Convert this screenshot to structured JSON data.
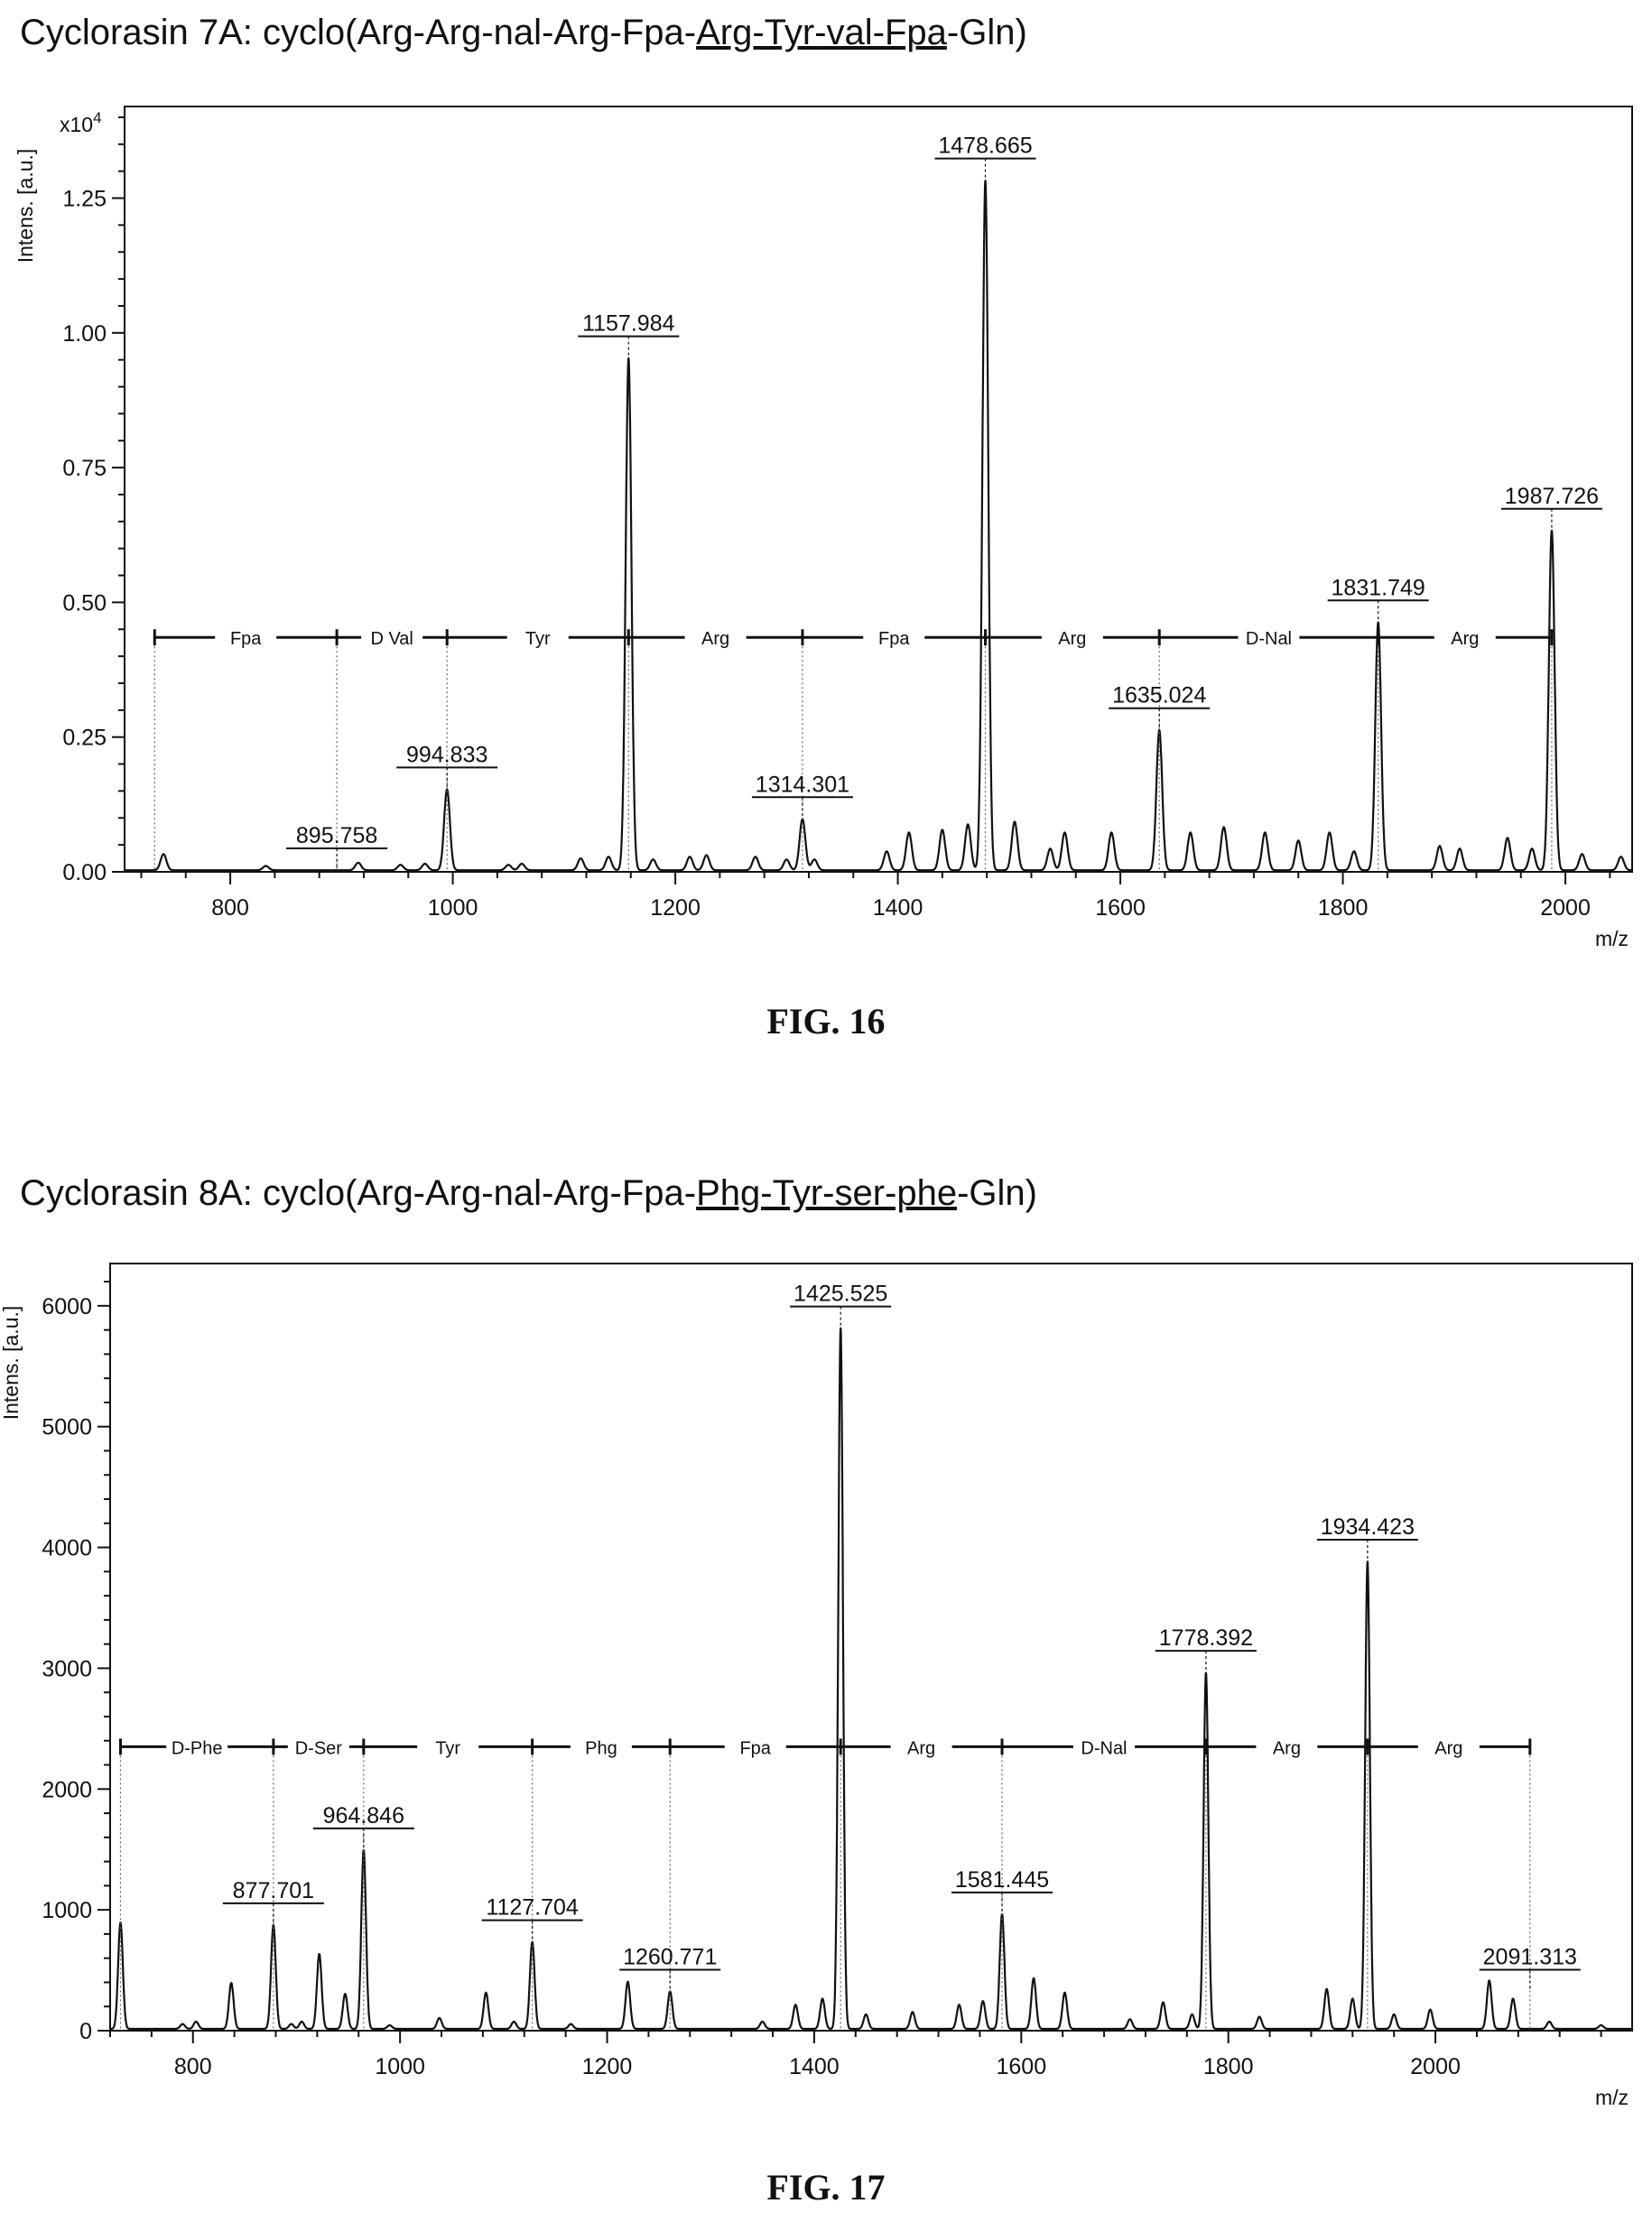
{
  "figures": [
    {
      "title_prefix": "Cyclorasin 7A: cyclo(Arg-Arg-nal-Arg-Fpa-",
      "title_underlined": "Arg-Tyr-val-Fpa",
      "title_suffix": "-Gln)",
      "caption": "FIG. 16",
      "chart_data": {
        "type": "line",
        "ylabel": "Intens. [a.u.]",
        "xlabel": "m/z",
        "y_multiplier_label": "x10",
        "y_multiplier_exp": "4",
        "xlim": [
          705,
          2060
        ],
        "ylim": [
          0,
          1.42
        ],
        "xticks": [
          800,
          1000,
          1200,
          1400,
          1600,
          1800,
          2000
        ],
        "yticks": [
          0.0,
          0.25,
          0.5,
          0.75,
          1.0,
          1.25
        ],
        "ytick_labels": [
          "0.00",
          "0.25",
          "0.50",
          "0.75",
          "1.00",
          "1.25"
        ],
        "baseline": 0.003,
        "peaks": [
          [
            740,
            0.03
          ],
          [
            832,
            0.008
          ],
          [
            915,
            0.014
          ],
          [
            953,
            0.01
          ],
          [
            975,
            0.012
          ],
          [
            994.8,
            0.15
          ],
          [
            1050,
            0.01
          ],
          [
            1062,
            0.012
          ],
          [
            1115,
            0.022
          ],
          [
            1140,
            0.025
          ],
          [
            1157.98,
            0.95
          ],
          [
            1180,
            0.02
          ],
          [
            1213,
            0.025
          ],
          [
            1228,
            0.028
          ],
          [
            1272,
            0.025
          ],
          [
            1300,
            0.02
          ],
          [
            1314.3,
            0.095
          ],
          [
            1325,
            0.02
          ],
          [
            1390,
            0.035
          ],
          [
            1410,
            0.07
          ],
          [
            1440,
            0.075
          ],
          [
            1463,
            0.085
          ],
          [
            1478.67,
            1.28
          ],
          [
            1505,
            0.09
          ],
          [
            1537,
            0.04
          ],
          [
            1550,
            0.07
          ],
          [
            1592,
            0.07
          ],
          [
            1635.02,
            0.26
          ],
          [
            1663,
            0.07
          ],
          [
            1693,
            0.08
          ],
          [
            1730,
            0.07
          ],
          [
            1760,
            0.055
          ],
          [
            1788,
            0.07
          ],
          [
            1810,
            0.035
          ],
          [
            1831.75,
            0.46
          ],
          [
            1887,
            0.045
          ],
          [
            1905,
            0.04
          ],
          [
            1948,
            0.06
          ],
          [
            1970,
            0.04
          ],
          [
            1987.73,
            0.63
          ],
          [
            2015,
            0.03
          ],
          [
            2050,
            0.025
          ]
        ],
        "peak_labels": [
          {
            "x": 895.758,
            "y": 0.0,
            "label": "895.758"
          },
          {
            "x": 994.833,
            "y": 0.15,
            "label": "994.833"
          },
          {
            "x": 1157.984,
            "y": 0.95,
            "label": "1157.984"
          },
          {
            "x": 1314.301,
            "y": 0.095,
            "label": "1314.301"
          },
          {
            "x": 1478.665,
            "y": 1.28,
            "label": "1478.665"
          },
          {
            "x": 1635.024,
            "y": 0.26,
            "label": "1635.024"
          },
          {
            "x": 1831.749,
            "y": 0.46,
            "label": "1831.749"
          },
          {
            "x": 1987.726,
            "y": 0.63,
            "label": "1987.726"
          }
        ],
        "sequence_y": 0.435,
        "sequence_marks": [
          732,
          895.758,
          994.833,
          1157.984,
          1314.301,
          1478.665,
          1635.024,
          1831.749,
          1987.726
        ],
        "residues": [
          "Fpa",
          "D Val",
          "Tyr",
          "Arg",
          "Fpa",
          "Arg",
          "D-Nal",
          "Arg"
        ]
      }
    },
    {
      "title_prefix": "Cyclorasin 8A: cyclo(Arg-Arg-nal-Arg-Fpa-",
      "title_underlined": "Phg-Tyr-ser-phe",
      "title_suffix": "-Gln)",
      "caption": "FIG. 17",
      "chart_data": {
        "type": "line",
        "ylabel": "Intens. [a.u.]",
        "xlabel": "m/z",
        "y_multiplier_label": "",
        "y_multiplier_exp": "",
        "xlim": [
          720,
          2190
        ],
        "ylim": [
          0,
          6350
        ],
        "xticks": [
          800,
          1000,
          1200,
          1400,
          1600,
          1800,
          2000
        ],
        "yticks": [
          0,
          1000,
          2000,
          3000,
          4000,
          5000,
          6000
        ],
        "ytick_labels": [
          "0",
          "1000",
          "2000",
          "3000",
          "4000",
          "5000",
          "6000"
        ],
        "baseline": 15,
        "peaks": [
          [
            730,
            880
          ],
          [
            790,
            40
          ],
          [
            803,
            60
          ],
          [
            837,
            380
          ],
          [
            877.7,
            860
          ],
          [
            895,
            40
          ],
          [
            905,
            60
          ],
          [
            922,
            620
          ],
          [
            947,
            290
          ],
          [
            964.85,
            1480
          ],
          [
            990,
            30
          ],
          [
            1038,
            90
          ],
          [
            1083,
            300
          ],
          [
            1110,
            60
          ],
          [
            1127.7,
            720
          ],
          [
            1165,
            40
          ],
          [
            1220,
            390
          ],
          [
            1260.77,
            310
          ],
          [
            1350,
            60
          ],
          [
            1382,
            200
          ],
          [
            1408,
            250
          ],
          [
            1425.53,
            5800
          ],
          [
            1450,
            120
          ],
          [
            1495,
            140
          ],
          [
            1540,
            200
          ],
          [
            1563,
            230
          ],
          [
            1581.45,
            950
          ],
          [
            1612,
            420
          ],
          [
            1642,
            300
          ],
          [
            1705,
            80
          ],
          [
            1737,
            220
          ],
          [
            1765,
            120
          ],
          [
            1778.39,
            2950
          ],
          [
            1830,
            100
          ],
          [
            1895,
            330
          ],
          [
            1920,
            250
          ],
          [
            1934.42,
            3870
          ],
          [
            1960,
            120
          ],
          [
            1995,
            160
          ],
          [
            2052,
            400
          ],
          [
            2075,
            250
          ],
          [
            2110,
            60
          ],
          [
            2160,
            30
          ]
        ],
        "peak_labels": [
          {
            "x": 877.701,
            "y": 860,
            "label": "877.701"
          },
          {
            "x": 964.846,
            "y": 1480,
            "label": "964.846"
          },
          {
            "x": 1127.704,
            "y": 720,
            "label": "1127.704"
          },
          {
            "x": 1260.771,
            "y": 310,
            "label": "1260.771"
          },
          {
            "x": 1425.525,
            "y": 5800,
            "label": "1425.525"
          },
          {
            "x": 1581.445,
            "y": 950,
            "label": "1581.445"
          },
          {
            "x": 1778.392,
            "y": 2950,
            "label": "1778.392"
          },
          {
            "x": 1934.423,
            "y": 3870,
            "label": "1934.423"
          },
          {
            "x": 2091.313,
            "y": 310,
            "label": "2091.313"
          }
        ],
        "sequence_y": 2350,
        "sequence_marks": [
          730,
          877.701,
          964.846,
          1127.704,
          1260.771,
          1425.525,
          1581.445,
          1778.392,
          1934.423,
          2091.313
        ],
        "residues": [
          "D-Phe",
          "D-Ser",
          "Tyr",
          "Phg",
          "Fpa",
          "Arg",
          "D-Nal",
          "Arg",
          "Arg"
        ]
      }
    }
  ]
}
